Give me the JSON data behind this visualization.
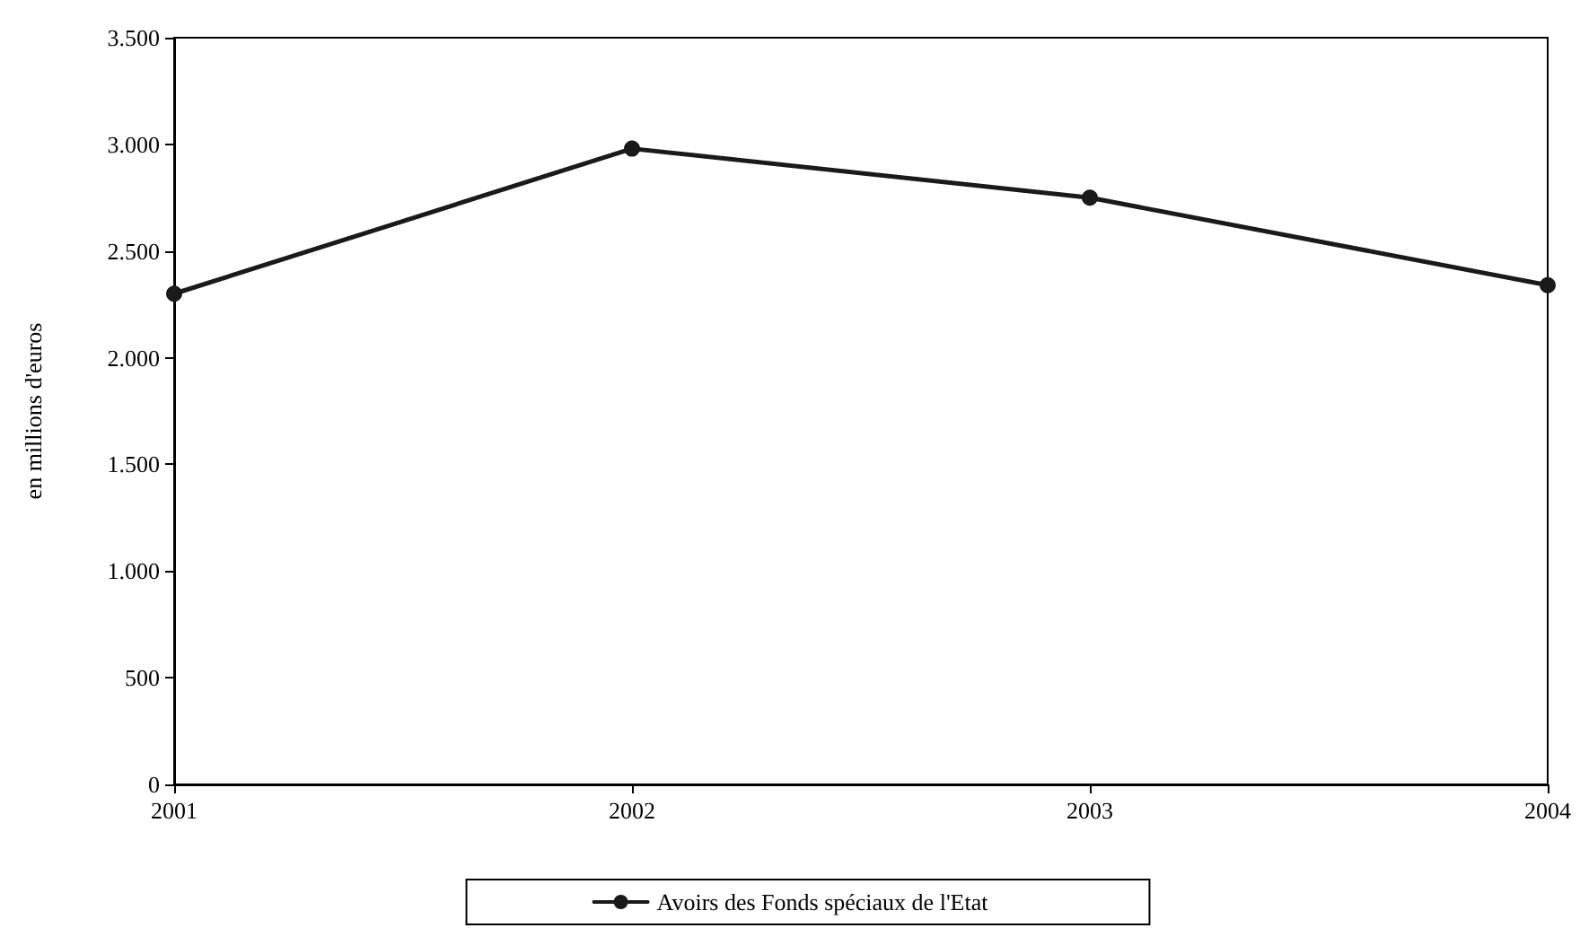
{
  "chart_data": {
    "type": "line",
    "ylabel": "en millions d'euros",
    "categories": [
      "2001",
      "2002",
      "2003",
      "2004"
    ],
    "series": [
      {
        "name": "Avoirs des Fonds spéciaux de l'Etat",
        "color": "#1a1a1a",
        "values": [
          2300,
          2980,
          2750,
          2340
        ]
      }
    ],
    "ylim": [
      0,
      3500
    ],
    "yticks": [
      0,
      500,
      {
        "value": 1000,
        "label": "1.000"
      },
      {
        "value": 1500,
        "label": "1.500"
      },
      {
        "value": 2000,
        "label": "2.000"
      },
      {
        "value": 2500,
        "label": "2.500"
      },
      {
        "value": 3000,
        "label": "3.000"
      },
      {
        "value": 3500,
        "label": "3.500"
      }
    ],
    "grid": false,
    "legend": "bottom",
    "marker": "circle",
    "line_style": "solid"
  }
}
